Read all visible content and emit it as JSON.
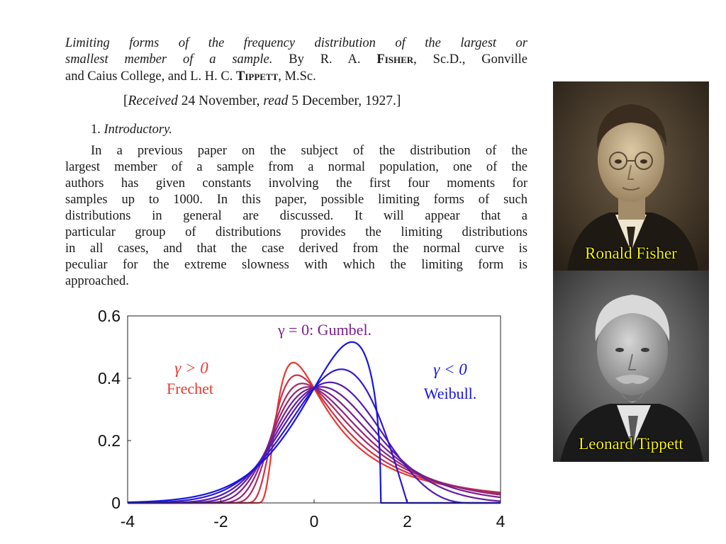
{
  "paper": {
    "title_line1": "Limiting forms of the frequency distribution of the largest or",
    "title_line2_italic": "smallest member of a sample.",
    "title_line2_rest_a": "By R. A.",
    "author1": "Fisher",
    "title_line2_rest_b": ", Sc.D., Gonville",
    "title_line3_a": "and Caius College, and L. H. C.",
    "author2": "Tippett",
    "title_line3_b": ", M.Sc.",
    "received_open": "[",
    "received_italic": "Received",
    "received_mid": " 24 November, ",
    "read_italic": "read",
    "received_close": " 5 December, 1927.]",
    "section_number": "1.",
    "section_title": "Introductory.",
    "body_lines": [
      "In a previous paper on the subject of the distribution of the",
      "largest member of a sample from a normal population, one of the",
      "authors has given constants involving the first four moments for",
      "samples up to 1000. In this paper, possible limiting forms of such",
      "distributions in general are discussed. It will appear that a",
      "particular group of distributions provides the limiting distributions",
      "in all cases, and that the case derived from the normal curve is",
      "peculiar for the extreme slowness with which the limiting form is",
      "approached."
    ]
  },
  "chart_data": {
    "type": "line",
    "title": "",
    "xlabel": "",
    "ylabel": "",
    "xlim": [
      -4,
      4
    ],
    "ylim": [
      0,
      0.6
    ],
    "xticks": [
      "-4",
      "-2",
      "0",
      "2",
      "4"
    ],
    "yticks": [
      "0",
      "0.2",
      "0.4",
      "0.6"
    ],
    "grid": false,
    "gammas": [
      0.7,
      0.5,
      0.3,
      0.15,
      0,
      -0.15,
      -0.3,
      -0.5,
      -0.7
    ],
    "color_positive": "#e8392e",
    "color_zero": "#7a1f8c",
    "color_negative": "#1515e6",
    "annotations": {
      "frechet_gamma": "γ > 0",
      "frechet_name": "Frechet",
      "gumbel_label": "γ = 0:  Gumbel.",
      "weibull_gamma": "γ < 0",
      "weibull_name": "Weibull."
    }
  },
  "photos": [
    {
      "caption": "Ronald Fisher",
      "tone": "sepia"
    },
    {
      "caption": "Leonard Tippett",
      "tone": "grayscale"
    }
  ]
}
